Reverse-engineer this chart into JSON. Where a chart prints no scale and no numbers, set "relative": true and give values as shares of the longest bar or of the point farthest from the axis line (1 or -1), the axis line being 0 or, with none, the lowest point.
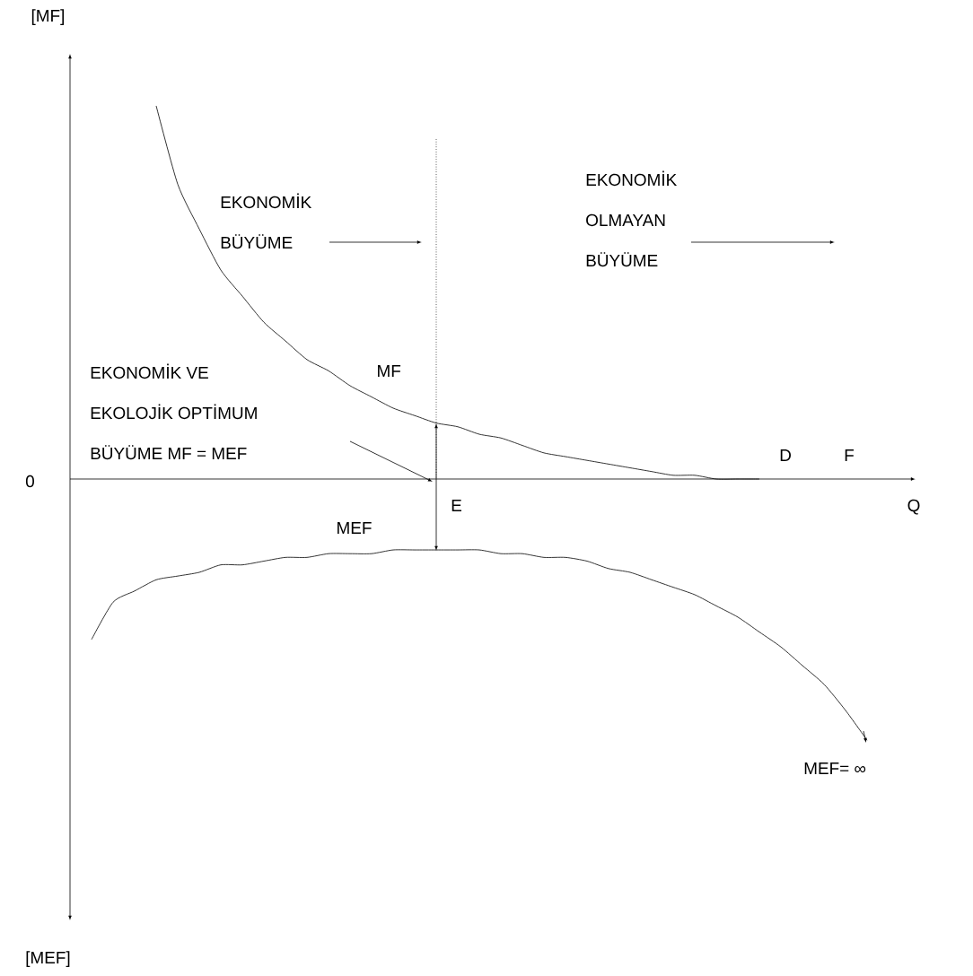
{
  "chart_data": {
    "type": "line",
    "relative": true,
    "ylabel": "[MF]",
    "xlabel": "Q",
    "categories": [
      null,
      null,
      null,
      null,
      null,
      null,
      null,
      null,
      null,
      null,
      null,
      null,
      null,
      null,
      null,
      null,
      null,
      null,
      null,
      null,
      null,
      null,
      null,
      null,
      null,
      null,
      null,
      null,
      null,
      null,
      null,
      null,
      null,
      null,
      null,
      null,
      null,
      null,
      null,
      null
    ],
    "series": [
      {
        "name": "MF",
        "color": "#000000",
        "values": [
          null,
          null,
          null,
          null,
          1.0,
          0.79,
          0.67,
          0.56,
          0.49,
          0.42,
          0.37,
          0.32,
          0.29,
          0.25,
          0.22,
          0.19,
          0.17,
          0.15,
          0.14,
          0.12,
          0.11,
          0.09,
          0.07,
          0.06,
          0.05,
          0.04,
          0.03,
          0.02,
          0.01,
          0.01,
          0.0,
          0.0,
          0.0,
          null,
          null,
          null,
          null,
          null,
          null,
          null
        ]
      },
      {
        "name": "MEF",
        "color": "#000000",
        "values": [
          null,
          -0.43,
          -0.33,
          -0.3,
          -0.27,
          -0.26,
          -0.25,
          -0.23,
          -0.23,
          -0.22,
          -0.21,
          -0.21,
          -0.2,
          -0.2,
          -0.2,
          -0.19,
          -0.19,
          -0.19,
          -0.19,
          -0.19,
          -0.2,
          -0.2,
          -0.21,
          -0.21,
          -0.22,
          -0.24,
          -0.25,
          -0.27,
          -0.29,
          -0.31,
          -0.34,
          -0.37,
          -0.41,
          -0.45,
          -0.5,
          -0.55,
          -0.62,
          -0.7,
          null,
          null
        ]
      }
    ],
    "annotations": [
      "0",
      "[MEF]",
      "EKONOMİK",
      "BÜYÜME",
      "EKONOMİK",
      "OLMAYAN",
      "BÜYÜME",
      "EKONOMİK VE",
      "EKOLOJİK OPTİMUM",
      "BÜYÜME MF = MEF",
      "E",
      "D",
      "F",
      "MEF= ∞"
    ]
  }
}
